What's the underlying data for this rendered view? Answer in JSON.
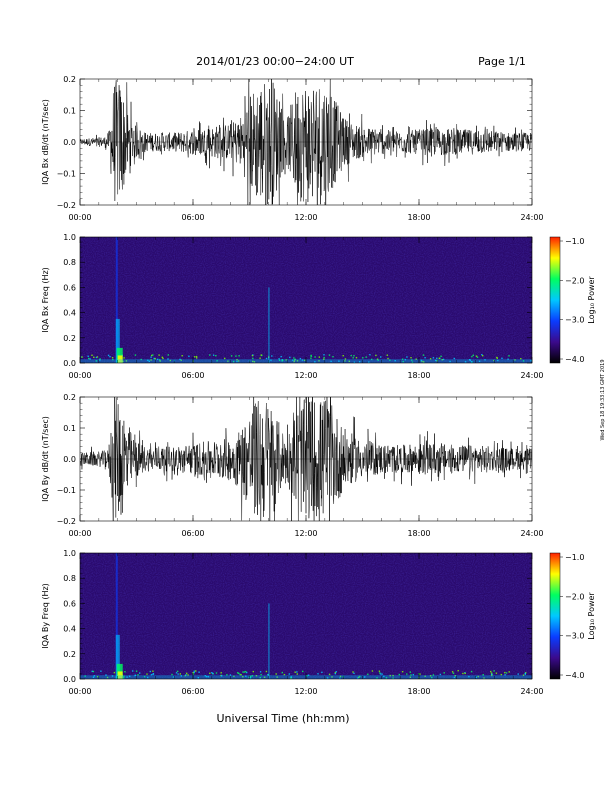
{
  "header": {
    "title": "2014/01/23  00:00−24:00 UT",
    "page": "Page 1/1"
  },
  "footer": {
    "xlabel": "Universal Time (hh:mm)",
    "side_stamp": "Wed Sep 18 19:33:13 GMT 2019"
  },
  "colors": {
    "spectrogram_background": "#2a0a6e",
    "waveform": "#000000",
    "colorbar_stops": [
      "#000000",
      "#3b0a8c",
      "#0a3cff",
      "#00c8ff",
      "#00ff60",
      "#ffff00",
      "#ff2000"
    ]
  },
  "chart_data": [
    {
      "type": "line",
      "ylabel": "IQA Bx dB/dt (nT/sec)",
      "xlim": [
        0,
        24
      ],
      "ylim": [
        -0.2,
        0.2
      ],
      "yticks": [
        "0.2",
        "0.1",
        "0.0",
        "−0.1",
        "−0.2"
      ],
      "xticks": [
        "00:00",
        "06:00",
        "12:00",
        "18:00",
        "24:00"
      ],
      "series": [
        {
          "x": [
            0,
            1,
            1.5,
            1.8,
            2.0,
            2.2,
            2.4,
            2.8,
            3.5,
            5,
            6,
            7,
            8,
            8.5,
            9,
            9.5,
            10,
            10.3,
            10.7,
            11,
            11.5,
            12,
            12.5,
            13,
            13.5,
            14,
            14.5,
            15,
            16,
            17,
            18,
            19,
            20,
            21,
            22,
            23,
            24
          ],
          "amplitude": [
            0.01,
            0.015,
            0.02,
            0.2,
            0.2,
            0.2,
            0.12,
            0.06,
            0.03,
            0.03,
            0.04,
            0.05,
            0.06,
            0.08,
            0.15,
            0.2,
            0.2,
            0.2,
            0.1,
            0.08,
            0.18,
            0.2,
            0.2,
            0.2,
            0.14,
            0.08,
            0.06,
            0.05,
            0.04,
            0.035,
            0.04,
            0.045,
            0.04,
            0.04,
            0.035,
            0.03,
            0.03
          ]
        }
      ]
    },
    {
      "type": "heatmap",
      "ylabel": "IQA Bx Freq (Hz)",
      "xlim": [
        0,
        24
      ],
      "ylim": [
        0.0,
        1.0
      ],
      "yticks": [
        "1.0",
        "0.8",
        "0.6",
        "0.4",
        "0.2",
        "0.0"
      ],
      "xticks": [
        "00:00",
        "06:00",
        "12:00",
        "18:00",
        "24:00"
      ],
      "colorbar": {
        "label": "Log₁₀ Power",
        "ticks": [
          "−1.0",
          "−2.0",
          "−3.0",
          "−4.0"
        ],
        "range": [
          -4.0,
          -1.0
        ]
      }
    },
    {
      "type": "line",
      "ylabel": "IQA By dB/dt (nT/sec)",
      "xlim": [
        0,
        24
      ],
      "ylim": [
        -0.2,
        0.2
      ],
      "yticks": [
        "0.2",
        "0.1",
        "0.0",
        "−0.1",
        "−0.2"
      ],
      "xticks": [
        "00:00",
        "06:00",
        "12:00",
        "18:00",
        "24:00"
      ],
      "series": [
        {
          "x": [
            0,
            1,
            1.5,
            1.8,
            2.0,
            2.2,
            2.4,
            2.8,
            3.5,
            5,
            6,
            7,
            8,
            8.5,
            9,
            9.5,
            10,
            10.3,
            10.7,
            11,
            11.5,
            12,
            12.5,
            13,
            13.5,
            14,
            14.5,
            15,
            16,
            17,
            18,
            19,
            20,
            21,
            22,
            23,
            24
          ],
          "amplitude": [
            0.02,
            0.025,
            0.03,
            0.2,
            0.2,
            0.2,
            0.15,
            0.07,
            0.04,
            0.04,
            0.05,
            0.06,
            0.07,
            0.1,
            0.16,
            0.2,
            0.2,
            0.16,
            0.1,
            0.08,
            0.16,
            0.2,
            0.2,
            0.2,
            0.16,
            0.1,
            0.08,
            0.06,
            0.05,
            0.045,
            0.05,
            0.05,
            0.045,
            0.045,
            0.04,
            0.035,
            0.035
          ]
        }
      ]
    },
    {
      "type": "heatmap",
      "ylabel": "IQA By Freq (Hz)",
      "xlim": [
        0,
        24
      ],
      "ylim": [
        0.0,
        1.0
      ],
      "yticks": [
        "1.0",
        "0.8",
        "0.6",
        "0.4",
        "0.2",
        "0.0"
      ],
      "xticks": [
        "00:00",
        "06:00",
        "12:00",
        "18:00",
        "24:00"
      ],
      "colorbar": {
        "label": "Log₁₀ Power",
        "ticks": [
          "−1.0",
          "−2.0",
          "−3.0",
          "−4.0"
        ],
        "range": [
          -4.0,
          -1.0
        ]
      }
    }
  ]
}
